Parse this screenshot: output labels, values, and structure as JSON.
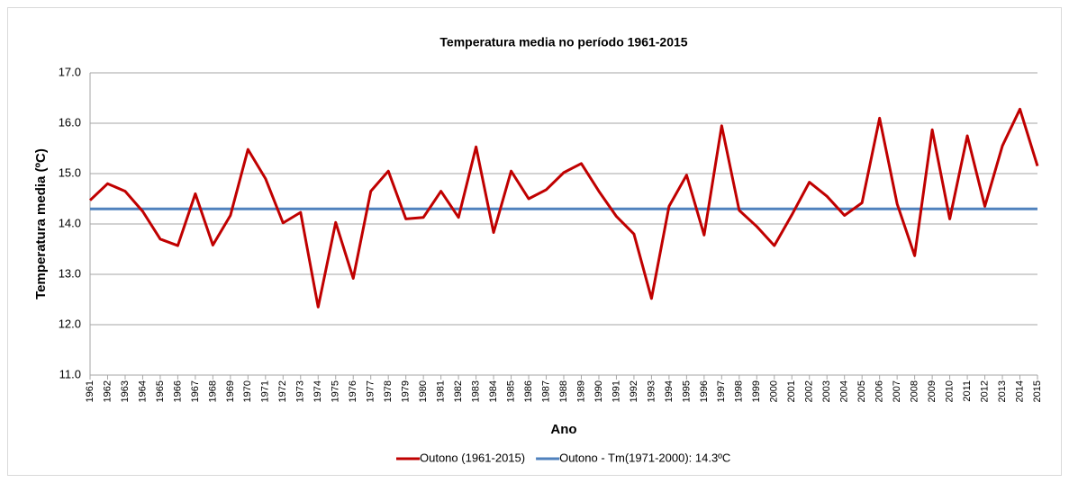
{
  "chart_data": {
    "type": "line",
    "title": "Temperatura media no período 1961-2015",
    "x_label": "Ano",
    "y_label": "Temperatura media  (ºC)",
    "categories": [
      "1961",
      "1962",
      "1963",
      "1964",
      "1965",
      "1966",
      "1967",
      "1968",
      "1969",
      "1970",
      "1971",
      "1972",
      "1973",
      "1974",
      "1975",
      "1976",
      "1977",
      "1978",
      "1979",
      "1980",
      "1981",
      "1982",
      "1983",
      "1984",
      "1985",
      "1986",
      "1987",
      "1988",
      "1989",
      "1990",
      "1991",
      "1992",
      "1993",
      "1994",
      "1995",
      "1996",
      "1997",
      "1998",
      "1999",
      "2000",
      "2001",
      "2002",
      "2003",
      "2004",
      "2005",
      "2006",
      "2007",
      "2008",
      "2009",
      "2010",
      "2011",
      "2012",
      "2013",
      "2014",
      "2015"
    ],
    "series": [
      {
        "name": "Outono (1961-2015)",
        "color": "#c00000",
        "values": [
          14.47,
          14.8,
          14.65,
          14.25,
          13.7,
          13.57,
          14.6,
          13.58,
          14.17,
          15.48,
          14.9,
          14.02,
          14.23,
          12.35,
          14.03,
          12.92,
          14.65,
          15.05,
          14.1,
          14.13,
          14.65,
          14.13,
          15.53,
          13.83,
          15.05,
          14.5,
          14.68,
          15.02,
          15.2,
          14.65,
          14.15,
          13.8,
          12.52,
          14.35,
          14.97,
          13.78,
          15.95,
          14.27,
          13.95,
          13.57,
          14.18,
          14.83,
          14.55,
          14.17,
          14.42,
          16.1,
          14.4,
          13.37,
          15.87,
          14.1,
          15.75,
          14.35,
          15.55,
          16.28,
          15.15
        ]
      },
      {
        "name": "Outono - Tm(1971-2000): 14.3ºC",
        "color": "#4f81bd",
        "values": [
          14.3,
          14.3,
          14.3,
          14.3,
          14.3,
          14.3,
          14.3,
          14.3,
          14.3,
          14.3,
          14.3,
          14.3,
          14.3,
          14.3,
          14.3,
          14.3,
          14.3,
          14.3,
          14.3,
          14.3,
          14.3,
          14.3,
          14.3,
          14.3,
          14.3,
          14.3,
          14.3,
          14.3,
          14.3,
          14.3,
          14.3,
          14.3,
          14.3,
          14.3,
          14.3,
          14.3,
          14.3,
          14.3,
          14.3,
          14.3,
          14.3,
          14.3,
          14.3,
          14.3,
          14.3,
          14.3,
          14.3,
          14.3,
          14.3,
          14.3,
          14.3,
          14.3,
          14.3,
          14.3,
          14.3
        ]
      }
    ],
    "ylim": [
      11,
      17
    ],
    "yticks": [
      {
        "value": 11,
        "label": "11.0"
      },
      {
        "value": 12,
        "label": "12.0"
      },
      {
        "value": 13,
        "label": "13.0"
      },
      {
        "value": 14,
        "label": "14.0"
      },
      {
        "value": 15,
        "label": "15.0"
      },
      {
        "value": 16,
        "label": "16.0"
      },
      {
        "value": 17,
        "label": "17.0"
      }
    ],
    "grid": true,
    "legend": "bottom"
  }
}
